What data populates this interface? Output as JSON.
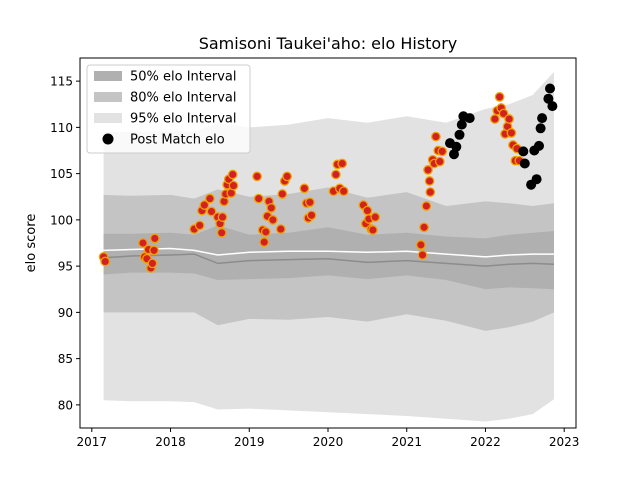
{
  "chart_data": {
    "type": "scatter",
    "title": "Samisoni Taukei'aho: elo History",
    "xlabel": "",
    "ylabel": "elo score",
    "xlim": [
      2016.85,
      2023.15
    ],
    "ylim": [
      77.5,
      117.5
    ],
    "x_ticks": [
      2017,
      2018,
      2019,
      2020,
      2021,
      2022,
      2023
    ],
    "x_tick_labels": [
      "2017",
      "2018",
      "2019",
      "2020",
      "2021",
      "2022",
      "2023"
    ],
    "y_ticks": [
      80,
      85,
      90,
      95,
      100,
      105,
      110,
      115
    ],
    "y_tick_labels": [
      "80",
      "85",
      "90",
      "95",
      "100",
      "105",
      "110",
      "115"
    ],
    "grid": false,
    "legend_position": "top-left",
    "colors": {
      "band50": "#b0b0b0",
      "band80": "#c4c4c4",
      "band95": "#e2e2e2",
      "median_line": "#8c8c8c",
      "mean_line": "#ffffff",
      "historic_point_fill": "#d32020",
      "historic_point_edge": "#f0a000",
      "recent_point_fill": "#000000"
    },
    "legend": [
      {
        "label": "50% elo Interval",
        "kind": "band50"
      },
      {
        "label": "80% elo Interval",
        "kind": "band80"
      },
      {
        "label": "95% elo Interval",
        "kind": "band95"
      },
      {
        "label": "Post Match elo",
        "kind": "point"
      }
    ],
    "bands": {
      "x": [
        2017.15,
        2017.5,
        2018.0,
        2018.3,
        2018.6,
        2019.0,
        2019.5,
        2020.0,
        2020.5,
        2021.0,
        2021.5,
        2022.0,
        2022.3,
        2022.6,
        2022.87
      ],
      "p95_upper": [
        109.5,
        109.5,
        109.6,
        109.5,
        110.5,
        110.0,
        110.3,
        111.0,
        110.5,
        111.2,
        110.5,
        112.0,
        112.5,
        113.5,
        116.0
      ],
      "p80_upper": [
        102.7,
        102.6,
        102.7,
        102.3,
        103.3,
        102.5,
        102.8,
        103.5,
        102.4,
        103.0,
        101.5,
        102.0,
        101.8,
        101.5,
        101.8
      ],
      "p50_upper": [
        98.5,
        98.5,
        98.6,
        98.4,
        99.4,
        98.4,
        98.6,
        99.2,
        98.4,
        98.6,
        98.2,
        98.0,
        98.4,
        98.6,
        98.8
      ],
      "p50_lower": [
        94.1,
        94.3,
        94.3,
        94.2,
        93.5,
        93.6,
        93.7,
        94.0,
        93.6,
        94.0,
        93.5,
        92.5,
        92.7,
        92.6,
        92.5
      ],
      "p80_lower": [
        90.0,
        90.0,
        90.0,
        90.0,
        88.6,
        89.3,
        89.2,
        89.5,
        89.0,
        89.8,
        89.1,
        88.0,
        88.4,
        89.0,
        90.0
      ],
      "p95_lower": [
        80.5,
        80.4,
        80.4,
        80.3,
        79.5,
        79.6,
        79.4,
        79.2,
        79.0,
        78.8,
        78.5,
        78.2,
        78.5,
        79.0,
        80.6
      ],
      "median": [
        95.9,
        96.1,
        96.2,
        96.3,
        95.3,
        95.6,
        95.7,
        95.8,
        95.4,
        95.6,
        95.3,
        95.0,
        95.2,
        95.3,
        95.2
      ],
      "mean": [
        96.7,
        96.8,
        96.9,
        96.7,
        96.2,
        96.5,
        96.6,
        96.6,
        96.5,
        96.6,
        96.3,
        96.0,
        96.2,
        96.3,
        96.3
      ]
    },
    "series": [
      {
        "name": "Post Match elo",
        "style": "historic",
        "points": [
          [
            2017.15,
            96.0
          ],
          [
            2017.17,
            95.5
          ],
          [
            2017.65,
            97.5
          ],
          [
            2017.67,
            96.0
          ],
          [
            2017.7,
            95.8
          ],
          [
            2017.72,
            96.8
          ],
          [
            2017.75,
            94.8
          ],
          [
            2017.77,
            95.3
          ],
          [
            2017.79,
            96.7
          ],
          [
            2017.8,
            98.0
          ],
          [
            2018.3,
            99.0
          ],
          [
            2018.37,
            99.4
          ],
          [
            2018.4,
            101.0
          ],
          [
            2018.43,
            101.6
          ],
          [
            2018.5,
            102.3
          ],
          [
            2018.52,
            100.9
          ],
          [
            2018.6,
            100.3
          ],
          [
            2018.63,
            99.6
          ],
          [
            2018.65,
            98.6
          ],
          [
            2018.66,
            100.3
          ],
          [
            2018.68,
            102.0
          ],
          [
            2018.7,
            102.8
          ],
          [
            2018.72,
            103.8
          ],
          [
            2018.74,
            104.4
          ],
          [
            2018.77,
            102.9
          ],
          [
            2018.79,
            104.9
          ],
          [
            2018.8,
            103.7
          ],
          [
            2019.1,
            104.7
          ],
          [
            2019.12,
            102.3
          ],
          [
            2019.17,
            98.9
          ],
          [
            2019.19,
            97.6
          ],
          [
            2019.21,
            98.7
          ],
          [
            2019.23,
            100.4
          ],
          [
            2019.25,
            102.0
          ],
          [
            2019.28,
            101.3
          ],
          [
            2019.3,
            100.0
          ],
          [
            2019.4,
            99.0
          ],
          [
            2019.42,
            102.8
          ],
          [
            2019.45,
            104.2
          ],
          [
            2019.48,
            104.7
          ],
          [
            2019.7,
            103.4
          ],
          [
            2019.73,
            101.8
          ],
          [
            2019.75,
            100.2
          ],
          [
            2019.77,
            101.9
          ],
          [
            2019.79,
            100.5
          ],
          [
            2020.07,
            103.1
          ],
          [
            2020.1,
            104.9
          ],
          [
            2020.12,
            106.0
          ],
          [
            2020.15,
            103.4
          ],
          [
            2020.18,
            106.1
          ],
          [
            2020.2,
            103.1
          ],
          [
            2020.45,
            101.6
          ],
          [
            2020.48,
            99.6
          ],
          [
            2020.5,
            101.0
          ],
          [
            2020.52,
            100.1
          ],
          [
            2020.55,
            99.0
          ],
          [
            2020.57,
            98.9
          ],
          [
            2020.6,
            100.3
          ],
          [
            2021.18,
            97.3
          ],
          [
            2021.2,
            96.2
          ],
          [
            2021.22,
            99.2
          ],
          [
            2021.25,
            101.5
          ],
          [
            2021.27,
            105.4
          ],
          [
            2021.29,
            104.2
          ],
          [
            2021.3,
            103.0
          ],
          [
            2021.33,
            106.5
          ],
          [
            2021.35,
            106.1
          ],
          [
            2021.37,
            109.0
          ],
          [
            2021.4,
            107.5
          ],
          [
            2021.42,
            106.3
          ],
          [
            2021.45,
            107.4
          ],
          [
            2022.12,
            110.9
          ],
          [
            2022.15,
            111.8
          ],
          [
            2022.18,
            113.3
          ],
          [
            2022.2,
            112.1
          ],
          [
            2022.23,
            111.5
          ],
          [
            2022.25,
            109.3
          ],
          [
            2022.28,
            110.1
          ],
          [
            2022.3,
            110.9
          ],
          [
            2022.33,
            109.4
          ],
          [
            2022.35,
            108.1
          ],
          [
            2022.38,
            106.4
          ],
          [
            2022.4,
            107.7
          ],
          [
            2022.43,
            106.4
          ]
        ]
      },
      {
        "name": "Post Match elo",
        "style": "recent",
        "points": [
          [
            2021.55,
            108.3
          ],
          [
            2021.6,
            107.1
          ],
          [
            2021.63,
            107.9
          ],
          [
            2021.67,
            109.2
          ],
          [
            2021.7,
            110.3
          ],
          [
            2021.72,
            111.2
          ],
          [
            2021.8,
            111.0
          ],
          [
            2022.48,
            107.4
          ],
          [
            2022.5,
            106.1
          ],
          [
            2022.58,
            103.8
          ],
          [
            2022.62,
            107.5
          ],
          [
            2022.65,
            104.4
          ],
          [
            2022.68,
            108.0
          ],
          [
            2022.7,
            109.9
          ],
          [
            2022.72,
            111.0
          ],
          [
            2022.8,
            113.1
          ],
          [
            2022.82,
            114.2
          ],
          [
            2022.85,
            112.3
          ]
        ]
      }
    ]
  }
}
